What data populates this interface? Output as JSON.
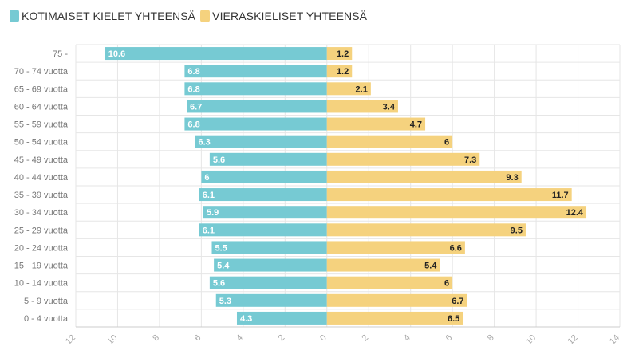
{
  "chart_data": {
    "type": "bar",
    "orientation": "horizontal-diverging",
    "title": "",
    "xlabel": "",
    "ylabel": "",
    "categories": [
      "75 -",
      "70 - 74 vuotta",
      "65 - 69 vuotta",
      "60 - 64 vuotta",
      "55 - 59 vuotta",
      "50 - 54 vuotta",
      "45 - 49 vuotta",
      "40 - 44 vuotta",
      "35 - 39 vuotta",
      "30 - 34 vuotta",
      "25 - 29 vuotta",
      "20 - 24 vuotta",
      "15 - 19 vuotta",
      "10 - 14 vuotta",
      "5 - 9 vuotta",
      "0 - 4 vuotta"
    ],
    "series": [
      {
        "name": "KOTIMAISET KIELET YHTEENSÄ",
        "color": "#76cad3",
        "side": "left",
        "values": [
          10.6,
          6.8,
          6.8,
          6.7,
          6.8,
          6.3,
          5.6,
          6,
          6.1,
          5.9,
          6.1,
          5.5,
          5.4,
          5.6,
          5.3,
          4.3
        ]
      },
      {
        "name": "VIERASKIELISET YHTEENSÄ",
        "color": "#f5d27e",
        "side": "right",
        "values": [
          1.2,
          1.2,
          2.1,
          3.4,
          4.7,
          6,
          7.3,
          9.3,
          11.7,
          12.4,
          9.5,
          6.6,
          5.4,
          6,
          6.7,
          6.5
        ]
      }
    ],
    "xlim": [
      -12,
      14
    ],
    "xticks": [
      -12,
      -10,
      -8,
      -6,
      -4,
      -2,
      0,
      2,
      4,
      6,
      8,
      10,
      12,
      14
    ],
    "xtick_labels": [
      "12",
      "10",
      "8",
      "6",
      "4",
      "2",
      "0",
      "2",
      "4",
      "6",
      "8",
      "10",
      "12",
      "14"
    ],
    "grid": true,
    "legend_position": "top-left"
  }
}
